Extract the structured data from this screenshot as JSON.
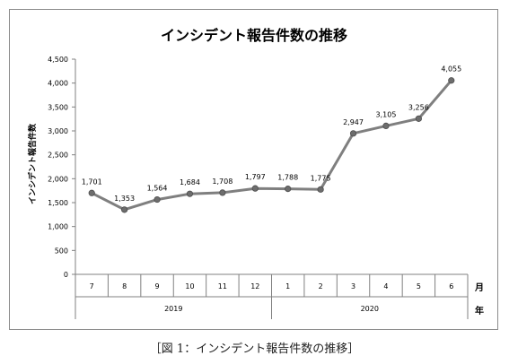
{
  "chart_data": {
    "type": "line",
    "title": "インシデント報告件数の推移",
    "ylabel": "インシデント報告件数",
    "xlabel": "",
    "ylim": [
      0,
      4500
    ],
    "yticks": [
      0,
      500,
      1000,
      1500,
      2000,
      2500,
      3000,
      3500,
      4000,
      4500
    ],
    "ytick_labels": [
      "0",
      "500",
      "1,000",
      "1,500",
      "2,000",
      "2,500",
      "3,000",
      "3,500",
      "4,000",
      "4,500"
    ],
    "categories": [
      "7",
      "8",
      "9",
      "10",
      "11",
      "12",
      "1",
      "2",
      "3",
      "4",
      "5",
      "6"
    ],
    "values": [
      1701,
      1353,
      1564,
      1684,
      1708,
      1797,
      1788,
      1775,
      2947,
      3105,
      3256,
      4055
    ],
    "value_labels": [
      "1,701",
      "1,353",
      "1,564",
      "1,684",
      "1,708",
      "1,797",
      "1,788",
      "1,775",
      "2,947",
      "3,105",
      "3,256",
      "4,055"
    ],
    "years": [
      {
        "label": "2019",
        "start": 0,
        "end": 5
      },
      {
        "label": "2020",
        "start": 6,
        "end": 11
      }
    ],
    "month_unit": "月",
    "year_unit": "年",
    "grid": false,
    "legend": "none",
    "line_color": "#7f7f7f"
  },
  "caption": "［図 1：インシデント報告件数の推移］"
}
